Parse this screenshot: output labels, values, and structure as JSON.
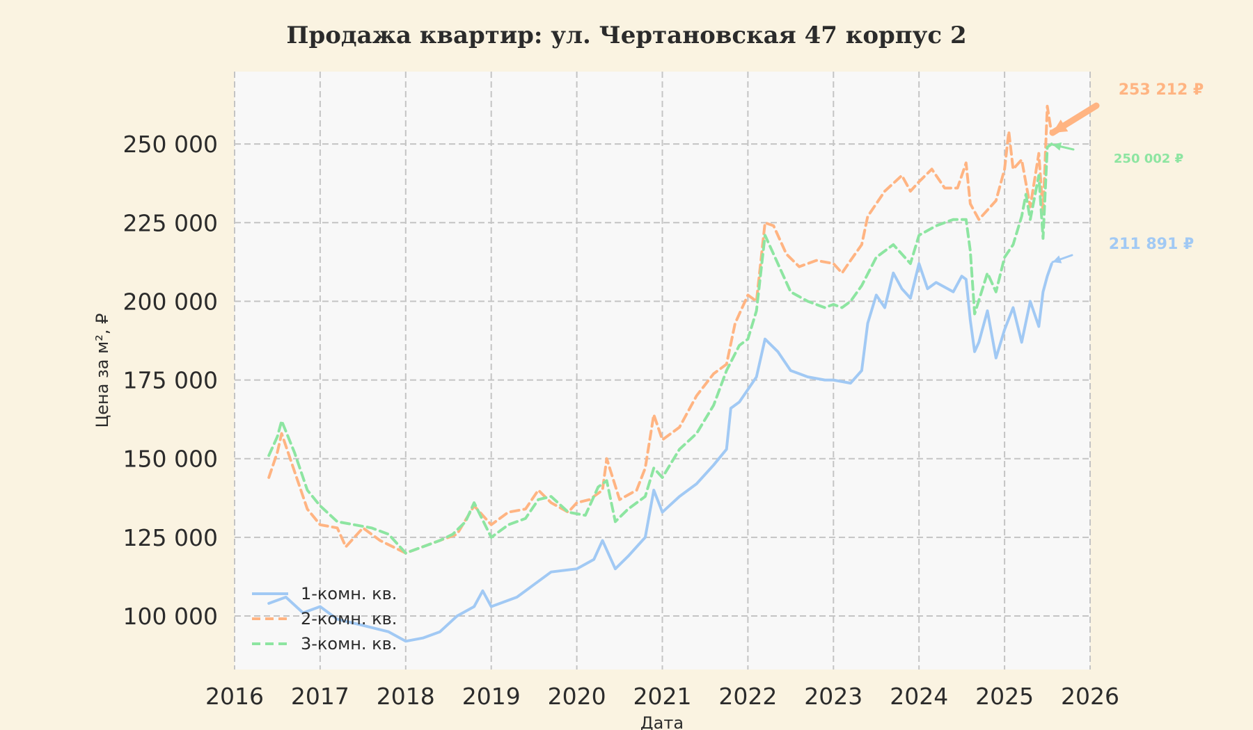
{
  "chart_data": {
    "type": "line",
    "title": "Продажа квартир: ул. Чертановская 47 корпус 2",
    "xlabel": "Дата",
    "ylabel": "Цена за м², ₽",
    "xlim": [
      2016.0,
      2026.0
    ],
    "ylim": [
      83000,
      273000
    ],
    "x_ticks": [
      2016,
      2017,
      2018,
      2019,
      2020,
      2021,
      2022,
      2023,
      2024,
      2025,
      2026
    ],
    "x_tick_labels": [
      "2016",
      "2017",
      "2018",
      "2019",
      "2020",
      "2021",
      "2022",
      "2023",
      "2024",
      "2025",
      "2026"
    ],
    "y_ticks": [
      100000,
      125000,
      150000,
      175000,
      200000,
      225000,
      250000
    ],
    "y_tick_labels": [
      "100 000",
      "125 000",
      "150 000",
      "175 000",
      "200 000",
      "225 000",
      "250 000"
    ],
    "grid": true,
    "legend_position": "bottom-left",
    "series": [
      {
        "name": "1-комн. кв.",
        "color": "#a1c9f4",
        "dash": "solid",
        "x": [
          2016.4,
          2016.6,
          2016.8,
          2017.0,
          2017.2,
          2017.5,
          2017.8,
          2018.0,
          2018.2,
          2018.4,
          2018.6,
          2018.8,
          2018.9,
          2019.0,
          2019.3,
          2019.5,
          2019.7,
          2020.0,
          2020.2,
          2020.3,
          2020.45,
          2020.6,
          2020.8,
          2020.9,
          2021.0,
          2021.2,
          2021.4,
          2021.6,
          2021.75,
          2021.8,
          2021.9,
          2022.0,
          2022.1,
          2022.2,
          2022.35,
          2022.5,
          2022.7,
          2022.9,
          2023.0,
          2023.2,
          2023.33,
          2023.4,
          2023.5,
          2023.6,
          2023.7,
          2023.8,
          2023.9,
          2024.0,
          2024.1,
          2024.2,
          2024.4,
          2024.5,
          2024.55,
          2024.6,
          2024.65,
          2024.7,
          2024.8,
          2024.9,
          2025.0,
          2025.1,
          2025.2,
          2025.3,
          2025.4,
          2025.45,
          2025.5,
          2025.55
        ],
        "y": [
          104000,
          106000,
          101000,
          103000,
          99000,
          97000,
          95000,
          92000,
          93000,
          95000,
          100000,
          103000,
          108000,
          103000,
          106000,
          110000,
          114000,
          115000,
          118000,
          124000,
          115000,
          119000,
          125000,
          140000,
          133000,
          138000,
          142000,
          148000,
          153000,
          166000,
          168000,
          172000,
          176000,
          188000,
          184000,
          178000,
          176000,
          175000,
          175000,
          174000,
          178000,
          193000,
          202000,
          198000,
          209000,
          204000,
          201000,
          212000,
          204000,
          206000,
          203000,
          208000,
          207000,
          194000,
          184000,
          187000,
          197000,
          182000,
          191000,
          198000,
          187000,
          200000,
          192000,
          203000,
          208000,
          211891
        ]
      },
      {
        "name": "2-комн. кв.",
        "color": "#ffb482",
        "dash": "12,7",
        "x": [
          2016.4,
          2016.5,
          2016.55,
          2016.7,
          2016.85,
          2017.0,
          2017.2,
          2017.3,
          2017.5,
          2017.7,
          2018.0,
          2018.3,
          2018.6,
          2018.8,
          2019.0,
          2019.2,
          2019.4,
          2019.55,
          2019.7,
          2019.9,
          2020.0,
          2020.15,
          2020.3,
          2020.35,
          2020.5,
          2020.7,
          2020.8,
          2020.9,
          2021.0,
          2021.2,
          2021.4,
          2021.6,
          2021.75,
          2021.85,
          2022.0,
          2022.1,
          2022.2,
          2022.3,
          2022.45,
          2022.6,
          2022.8,
          2023.0,
          2023.1,
          2023.2,
          2023.33,
          2023.4,
          2023.6,
          2023.8,
          2023.9,
          2024.0,
          2024.15,
          2024.3,
          2024.45,
          2024.55,
          2024.6,
          2024.7,
          2024.9,
          2025.0,
          2025.05,
          2025.1,
          2025.2,
          2025.3,
          2025.4,
          2025.45,
          2025.5,
          2025.55
        ],
        "y": [
          144000,
          152000,
          158000,
          146000,
          134000,
          129000,
          128000,
          122000,
          128000,
          124000,
          120000,
          123000,
          126000,
          135000,
          129000,
          133000,
          134000,
          140000,
          136000,
          133000,
          136000,
          137000,
          140000,
          150000,
          137000,
          140000,
          147000,
          164000,
          156000,
          160000,
          170000,
          177000,
          180000,
          193000,
          202000,
          200000,
          225000,
          224000,
          215000,
          211000,
          213000,
          212000,
          209000,
          213000,
          218000,
          227000,
          235000,
          240000,
          235000,
          238000,
          242000,
          236000,
          236000,
          244000,
          231000,
          226000,
          232000,
          242000,
          254000,
          242000,
          245000,
          230000,
          247000,
          228000,
          262000,
          253212
        ]
      },
      {
        "name": "3-комн. кв.",
        "color": "#8de5a1",
        "dash": "12,7",
        "x": [
          2016.4,
          2016.5,
          2016.55,
          2016.7,
          2016.85,
          2017.0,
          2017.2,
          2017.4,
          2017.6,
          2017.8,
          2018.0,
          2018.2,
          2018.4,
          2018.55,
          2018.7,
          2018.8,
          2019.0,
          2019.2,
          2019.4,
          2019.55,
          2019.7,
          2019.9,
          2020.1,
          2020.25,
          2020.35,
          2020.45,
          2020.6,
          2020.8,
          2020.9,
          2021.0,
          2021.2,
          2021.4,
          2021.6,
          2021.75,
          2021.9,
          2022.0,
          2022.1,
          2022.2,
          2022.35,
          2022.5,
          2022.7,
          2022.9,
          2023.0,
          2023.1,
          2023.2,
          2023.33,
          2023.5,
          2023.7,
          2023.9,
          2024.0,
          2024.2,
          2024.4,
          2024.55,
          2024.6,
          2024.65,
          2024.8,
          2024.9,
          2025.0,
          2025.1,
          2025.2,
          2025.25,
          2025.3,
          2025.4,
          2025.45,
          2025.5,
          2025.55
        ],
        "y": [
          151000,
          157000,
          162000,
          152000,
          140000,
          135000,
          130000,
          129000,
          128000,
          126000,
          120000,
          122000,
          124000,
          126000,
          130000,
          136000,
          125000,
          129000,
          131000,
          137000,
          138000,
          133000,
          132000,
          141000,
          143000,
          130000,
          134000,
          138000,
          147000,
          144000,
          153000,
          158000,
          167000,
          178000,
          186000,
          188000,
          197000,
          221000,
          212000,
          203000,
          200000,
          198000,
          199000,
          198000,
          200000,
          205000,
          214000,
          218000,
          212000,
          221000,
          224000,
          226000,
          226000,
          216000,
          196000,
          209000,
          203000,
          214000,
          218000,
          227000,
          234000,
          226000,
          240000,
          220000,
          249000,
          250002
        ]
      }
    ],
    "annotations": [
      {
        "text": "253 212 ₽",
        "series": 1,
        "color": "#ffb482"
      },
      {
        "text": "250 002 ₽",
        "series": 2,
        "color": "#8de5a1"
      },
      {
        "text": "211 891 ₽",
        "series": 0,
        "color": "#a1c9f4"
      }
    ]
  }
}
